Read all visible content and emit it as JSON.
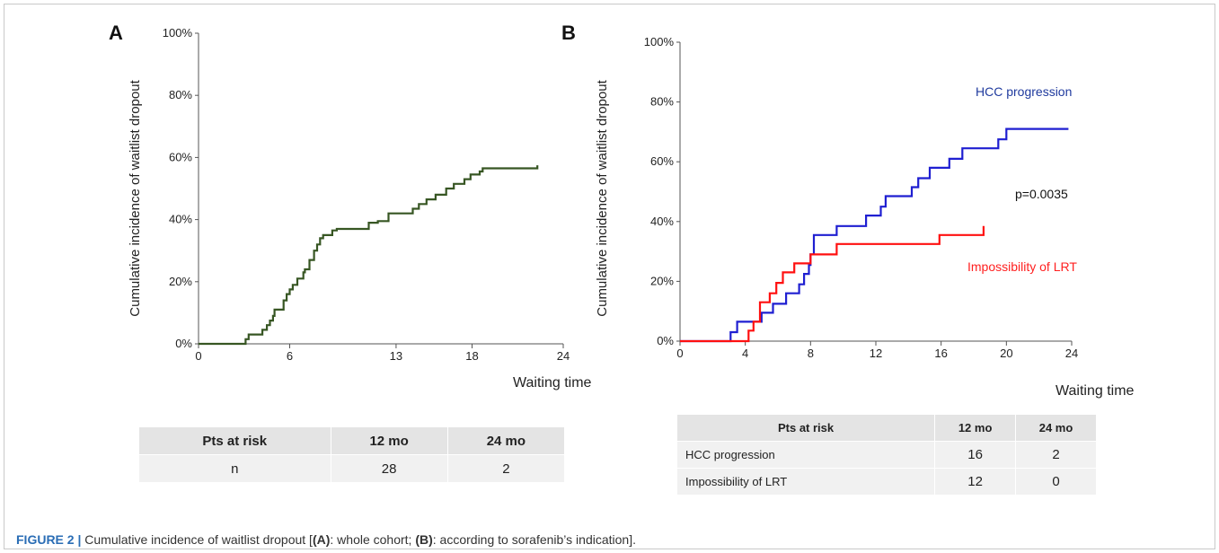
{
  "chart_data": [
    {
      "type": "line",
      "panel": "A",
      "ylabel": "Cumulative incidence of waitlist dropout",
      "xlabel": "Waiting time",
      "x_ticks": [
        0,
        6,
        13,
        18,
        24
      ],
      "y_ticks": [
        "0%",
        "20%",
        "40%",
        "60%",
        "80%",
        "100%"
      ],
      "xlim": [
        0,
        24
      ],
      "ylim": [
        0,
        100
      ],
      "step": true,
      "series": [
        {
          "color": "#375623",
          "x": [
            0,
            3.1,
            3.3,
            4.2,
            4.5,
            4.7,
            4.9,
            5.0,
            5.6,
            5.8,
            6.0,
            6.2,
            6.5,
            6.9,
            7.0,
            7.3,
            7.6,
            7.8,
            8.0,
            8.2,
            8.8,
            9.1,
            9.8,
            11.2,
            11.8,
            12.5,
            13.5,
            14.1,
            14.5,
            15.0,
            15.6,
            16.3,
            16.8,
            17.5,
            17.9,
            18.5,
            18.7,
            19.0,
            22.3
          ],
          "y": [
            0,
            1.5,
            3,
            4.5,
            6,
            7.5,
            9,
            11,
            14,
            16,
            17.5,
            19,
            21,
            23,
            24,
            27,
            30,
            32,
            34,
            35,
            36.5,
            37,
            37,
            39,
            39.5,
            42,
            42,
            43.5,
            45,
            46.5,
            48,
            50,
            51.5,
            53,
            54.5,
            55.5,
            56.5,
            56.5,
            57.5
          ]
        }
      ]
    },
    {
      "type": "line",
      "panel": "B",
      "ylabel": "Cumulative incidence of waitlist dropout",
      "xlabel": "Waiting time",
      "x_ticks": [
        0,
        4,
        8,
        12,
        16,
        20,
        24
      ],
      "y_ticks": [
        "0%",
        "20%",
        "40%",
        "60%",
        "80%",
        "100%"
      ],
      "xlim": [
        0,
        24
      ],
      "ylim": [
        0,
        100
      ],
      "step": true,
      "annotation": "p=0.0035",
      "series": [
        {
          "name": "HCC progression",
          "color": "#1f1fd1",
          "x": [
            0,
            3.1,
            3.5,
            5.0,
            5.7,
            6.5,
            7.3,
            7.6,
            7.9,
            8.0,
            8.2,
            9.6,
            11.4,
            12.3,
            12.6,
            14.2,
            14.6,
            15.3,
            16.5,
            17.3,
            17.7,
            19.5,
            20.0,
            23.8
          ],
          "y": [
            0,
            3,
            6.5,
            9.5,
            12.5,
            16,
            19,
            22.5,
            25.5,
            29,
            35.5,
            38.5,
            42,
            45,
            48.5,
            51.5,
            54.5,
            58,
            61,
            64.5,
            64.5,
            67.5,
            71,
            71
          ]
        },
        {
          "name": "Impossibility of LRT",
          "color": "#ff1010",
          "x": [
            0,
            4.2,
            4.5,
            4.9,
            5.5,
            5.9,
            6.3,
            7.0,
            8.0,
            9.6,
            15.9,
            18.6
          ],
          "y": [
            0,
            3.5,
            6.5,
            13,
            16,
            19.5,
            23,
            26,
            29,
            32.5,
            35.5,
            38.5
          ]
        }
      ]
    }
  ],
  "panels": {
    "a": {
      "letter": "A"
    },
    "b": {
      "letter": "B",
      "label_hcc": "HCC progression",
      "label_lrt": "Impossibility of LRT",
      "pvalue": "p=0.0035"
    }
  },
  "table_a": {
    "headers": [
      "Pts at risk",
      "12 mo",
      "24 mo"
    ],
    "rows": [
      [
        "n",
        "28",
        "2"
      ]
    ]
  },
  "table_b": {
    "headers": [
      "Pts at risk",
      "12 mo",
      "24 mo"
    ],
    "rows": [
      [
        "HCC progression",
        "16",
        "2"
      ],
      [
        "Impossibility of LRT",
        "12",
        "0"
      ]
    ]
  },
  "caption": {
    "figure_label": "FIGURE 2 |",
    "text_1": " Cumulative incidence of waitlist dropout [",
    "a_label": "(A)",
    "text_2": ": whole cohort; ",
    "b_label": "(B)",
    "text_3": ": according to sorafenib’s indication]."
  }
}
